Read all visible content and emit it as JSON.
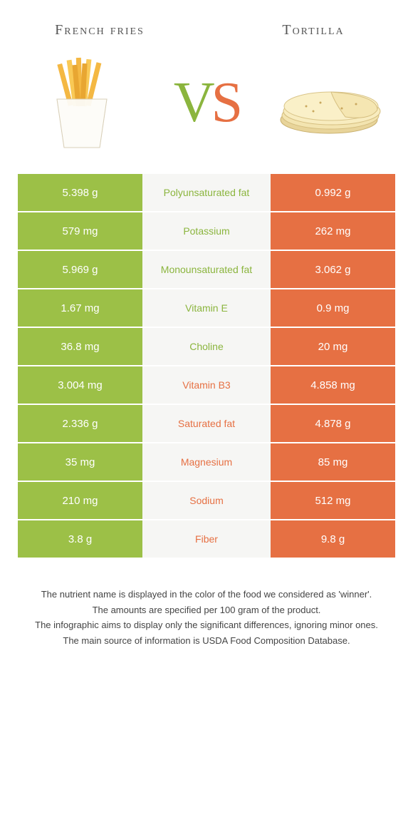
{
  "colors": {
    "left": "#9cc047",
    "right": "#e67043",
    "midBg": "#f6f6f4",
    "leftText": "#8bb53e",
    "rightText": "#e67043"
  },
  "header": {
    "leftTitle": "French fries",
    "rightTitle": "Tortilla"
  },
  "vs": {
    "v": "V",
    "s": "S"
  },
  "rows": [
    {
      "left": "5.398 g",
      "mid": "Polyunsaturated fat",
      "right": "0.992 g",
      "winner": "left"
    },
    {
      "left": "579 mg",
      "mid": "Potassium",
      "right": "262 mg",
      "winner": "left"
    },
    {
      "left": "5.969 g",
      "mid": "Monounsaturated fat",
      "right": "3.062 g",
      "winner": "left"
    },
    {
      "left": "1.67 mg",
      "mid": "Vitamin E",
      "right": "0.9 mg",
      "winner": "left"
    },
    {
      "left": "36.8 mg",
      "mid": "Choline",
      "right": "20 mg",
      "winner": "left"
    },
    {
      "left": "3.004 mg",
      "mid": "Vitamin B3",
      "right": "4.858 mg",
      "winner": "right"
    },
    {
      "left": "2.336 g",
      "mid": "Saturated fat",
      "right": "4.878 g",
      "winner": "right"
    },
    {
      "left": "35 mg",
      "mid": "Magnesium",
      "right": "85 mg",
      "winner": "right"
    },
    {
      "left": "210 mg",
      "mid": "Sodium",
      "right": "512 mg",
      "winner": "right"
    },
    {
      "left": "3.8 g",
      "mid": "Fiber",
      "right": "9.8 g",
      "winner": "right"
    }
  ],
  "footer": {
    "line1": "The nutrient name is displayed in the color of the food we considered as 'winner'.",
    "line2": "The amounts are specified per 100 gram of the product.",
    "line3": "The infographic aims to display only the significant differences, ignoring minor ones.",
    "line4": "The main source of information is USDA Food Composition Database."
  }
}
